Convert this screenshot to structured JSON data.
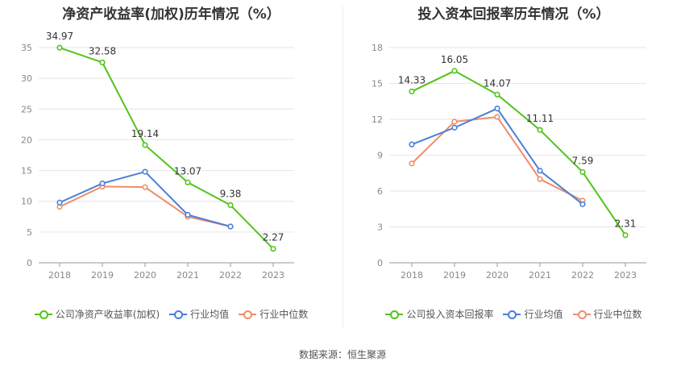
{
  "chart_data": [
    {
      "type": "line",
      "title": "净资产收益率(加权)历年情况（%）",
      "categories": [
        "2018",
        "2019",
        "2020",
        "2021",
        "2022",
        "2023"
      ],
      "ylim": [
        0,
        35
      ],
      "yticks": [
        0,
        5,
        10,
        15,
        20,
        25,
        30,
        35
      ],
      "grid": true,
      "legend_position": "bottom",
      "series": [
        {
          "name": "公司净资产收益率(加权)",
          "color": "#52c41a",
          "values": [
            34.97,
            32.58,
            19.14,
            13.07,
            9.38,
            2.27
          ],
          "show_labels": true
        },
        {
          "name": "行业均值",
          "color": "#4a7fd8",
          "values": [
            9.8,
            12.9,
            14.8,
            7.8,
            5.9,
            null
          ],
          "show_labels": false
        },
        {
          "name": "行业中位数",
          "color": "#f08c6c",
          "values": [
            9.1,
            12.4,
            12.3,
            7.5,
            5.9,
            null
          ],
          "show_labels": false
        }
      ]
    },
    {
      "type": "line",
      "title": "投入资本回报率历年情况（%）",
      "categories": [
        "2018",
        "2019",
        "2020",
        "2021",
        "2022",
        "2023"
      ],
      "ylim": [
        0,
        18
      ],
      "yticks": [
        0,
        3,
        6,
        9,
        12,
        15,
        18
      ],
      "grid": true,
      "legend_position": "bottom",
      "series": [
        {
          "name": "公司投入资本回报率",
          "color": "#52c41a",
          "values": [
            14.33,
            16.05,
            14.07,
            11.11,
            7.59,
            2.31
          ],
          "show_labels": true
        },
        {
          "name": "行业均值",
          "color": "#4a7fd8",
          "values": [
            9.9,
            11.3,
            12.9,
            7.7,
            4.9,
            null
          ],
          "show_labels": false
        },
        {
          "name": "行业中位数",
          "color": "#f08c6c",
          "values": [
            8.3,
            11.8,
            12.2,
            7.0,
            5.2,
            null
          ],
          "show_labels": false
        }
      ]
    }
  ],
  "footer": {
    "source": "数据来源：恒生聚源"
  }
}
